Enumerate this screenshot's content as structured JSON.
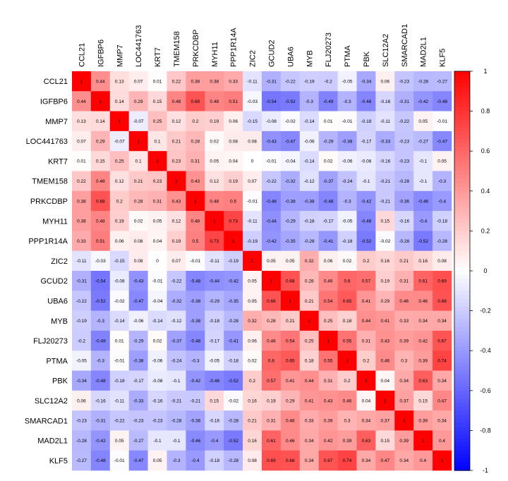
{
  "chart_data": {
    "type": "heatmap",
    "title": "",
    "xlabel": "",
    "ylabel": "",
    "labels": [
      "CCL21",
      "IGFBP6",
      "MMP7",
      "LOC441763",
      "KRT7",
      "TMEM158",
      "PRKCDBP",
      "MYH11",
      "PPP1R14A",
      "ZIC2",
      "GCUD2",
      "UBA6",
      "MYB",
      "FLJ20273",
      "PTMA",
      "PBK",
      "SLC12A2",
      "SMARCAD1",
      "MAD2L1",
      "KLF5"
    ],
    "values": [
      [
        1,
        0.44,
        0.13,
        0.07,
        0.01,
        0.22,
        0.38,
        0.38,
        0.33,
        -0.11,
        -0.31,
        -0.22,
        -0.19,
        -0.2,
        -0.05,
        -0.34,
        0.06,
        -0.23,
        -0.28,
        -0.27
      ],
      [
        0.44,
        1,
        0.14,
        0.29,
        0.15,
        0.48,
        0.68,
        0.48,
        0.51,
        -0.03,
        -0.54,
        -0.52,
        -0.3,
        -0.49,
        -0.3,
        -0.48,
        -0.16,
        -0.31,
        -0.42,
        -0.48
      ],
      [
        0.13,
        0.14,
        1,
        -0.07,
        0.25,
        0.12,
        0.2,
        0.19,
        0.06,
        -0.15,
        -0.08,
        -0.02,
        -0.14,
        0.01,
        -0.01,
        -0.18,
        -0.11,
        -0.22,
        0.05,
        -0.01
      ],
      [
        0.07,
        0.29,
        -0.07,
        1,
        0.1,
        0.21,
        0.28,
        0.02,
        0.08,
        0.08,
        -0.43,
        -0.47,
        -0.06,
        -0.29,
        -0.38,
        -0.17,
        -0.33,
        -0.23,
        -0.27,
        -0.47
      ],
      [
        0.01,
        0.15,
        0.25,
        0.1,
        1,
        0.23,
        0.31,
        0.05,
        0.04,
        0,
        -0.01,
        -0.04,
        -0.14,
        0.02,
        -0.06,
        -0.08,
        -0.16,
        -0.23,
        -0.1,
        0.05
      ],
      [
        0.22,
        0.48,
        0.12,
        0.21,
        0.23,
        1,
        0.43,
        0.12,
        0.19,
        0.07,
        -0.22,
        -0.32,
        -0.12,
        -0.37,
        -0.24,
        -0.1,
        -0.21,
        -0.28,
        -0.1,
        -0.3
      ],
      [
        0.38,
        0.68,
        0.2,
        0.28,
        0.31,
        0.43,
        1,
        0.48,
        0.5,
        -0.01,
        -0.48,
        -0.38,
        -0.38,
        -0.48,
        -0.3,
        -0.42,
        -0.21,
        -0.36,
        -0.46,
        -0.4
      ],
      [
        0.38,
        0.48,
        0.19,
        0.02,
        0.05,
        0.12,
        0.48,
        1,
        0.73,
        -0.11,
        -0.44,
        -0.29,
        -0.18,
        -0.17,
        -0.05,
        -0.48,
        0.15,
        -0.16,
        -0.4,
        -0.18
      ],
      [
        0.33,
        0.51,
        0.06,
        0.08,
        0.04,
        0.19,
        0.5,
        0.73,
        1,
        -0.19,
        -0.42,
        -0.35,
        -0.28,
        -0.41,
        -0.18,
        -0.52,
        -0.02,
        -0.28,
        -0.52,
        -0.28
      ],
      [
        -0.11,
        -0.03,
        -0.15,
        0.08,
        0,
        0.07,
        -0.01,
        -0.11,
        -0.19,
        1,
        0.05,
        0.05,
        0.32,
        0.06,
        0.02,
        0.2,
        0.16,
        0.21,
        0.16,
        0.08
      ],
      [
        -0.31,
        -0.54,
        -0.08,
        -0.43,
        -0.01,
        -0.22,
        -0.48,
        -0.44,
        -0.42,
        0.05,
        1,
        0.68,
        0.28,
        0.46,
        0.6,
        0.57,
        0.19,
        0.31,
        0.61,
        0.69
      ],
      [
        -0.22,
        -0.52,
        -0.02,
        -0.47,
        -0.04,
        -0.32,
        -0.38,
        -0.29,
        -0.35,
        0.05,
        0.68,
        1,
        0.21,
        0.54,
        0.65,
        0.41,
        0.29,
        0.46,
        0.46,
        0.68
      ],
      [
        -0.19,
        -0.3,
        -0.14,
        -0.06,
        -0.14,
        -0.12,
        -0.38,
        -0.18,
        -0.28,
        0.32,
        0.28,
        0.21,
        1,
        0.25,
        0.18,
        0.44,
        0.41,
        0.33,
        0.34,
        0.34
      ],
      [
        -0.2,
        -0.49,
        0.01,
        -0.29,
        0.02,
        -0.37,
        -0.48,
        -0.17,
        -0.41,
        0.06,
        0.46,
        0.54,
        0.25,
        1,
        0.55,
        0.31,
        0.43,
        0.39,
        0.42,
        0.67
      ],
      [
        -0.05,
        -0.3,
        -0.01,
        -0.38,
        -0.06,
        -0.24,
        -0.3,
        -0.05,
        -0.18,
        0.02,
        0.6,
        0.65,
        0.18,
        0.55,
        1,
        0.2,
        0.46,
        0.3,
        0.39,
        0.74
      ],
      [
        -0.34,
        -0.48,
        -0.18,
        -0.17,
        -0.08,
        -0.1,
        -0.42,
        -0.48,
        -0.52,
        0.2,
        0.57,
        0.41,
        0.44,
        0.31,
        0.2,
        1,
        0.04,
        0.34,
        0.63,
        0.34
      ],
      [
        0.06,
        -0.16,
        -0.11,
        -0.33,
        -0.16,
        -0.21,
        -0.21,
        0.15,
        -0.02,
        0.16,
        0.19,
        0.29,
        0.41,
        0.43,
        0.46,
        0.04,
        1,
        0.37,
        0.15,
        0.47
      ],
      [
        -0.23,
        -0.31,
        -0.22,
        -0.23,
        -0.23,
        -0.28,
        -0.36,
        -0.16,
        -0.28,
        0.21,
        0.31,
        0.46,
        0.33,
        0.39,
        0.3,
        0.34,
        0.37,
        1,
        0.39,
        0.34
      ],
      [
        -0.28,
        -0.42,
        0.05,
        -0.27,
        -0.1,
        -0.1,
        -0.46,
        -0.4,
        -0.52,
        0.16,
        0.61,
        0.46,
        0.34,
        0.42,
        0.39,
        0.63,
        0.15,
        0.39,
        1,
        0.4
      ],
      [
        -0.27,
        -0.48,
        -0.01,
        -0.47,
        0.05,
        -0.3,
        -0.4,
        -0.18,
        -0.28,
        0.08,
        0.69,
        0.68,
        0.34,
        0.67,
        0.74,
        0.34,
        0.47,
        0.34,
        0.4,
        1
      ]
    ],
    "color_scale": {
      "min": -1,
      "max": 1,
      "ticks": [
        1,
        0.8,
        0.6,
        0.4,
        0.2,
        0,
        -0.2,
        -0.4,
        -0.6,
        -0.8,
        -1
      ],
      "low_color": "#0000ff",
      "mid_color": "#ffffff",
      "high_color": "#ff0000"
    },
    "grid": false,
    "legend_placement": "right"
  }
}
